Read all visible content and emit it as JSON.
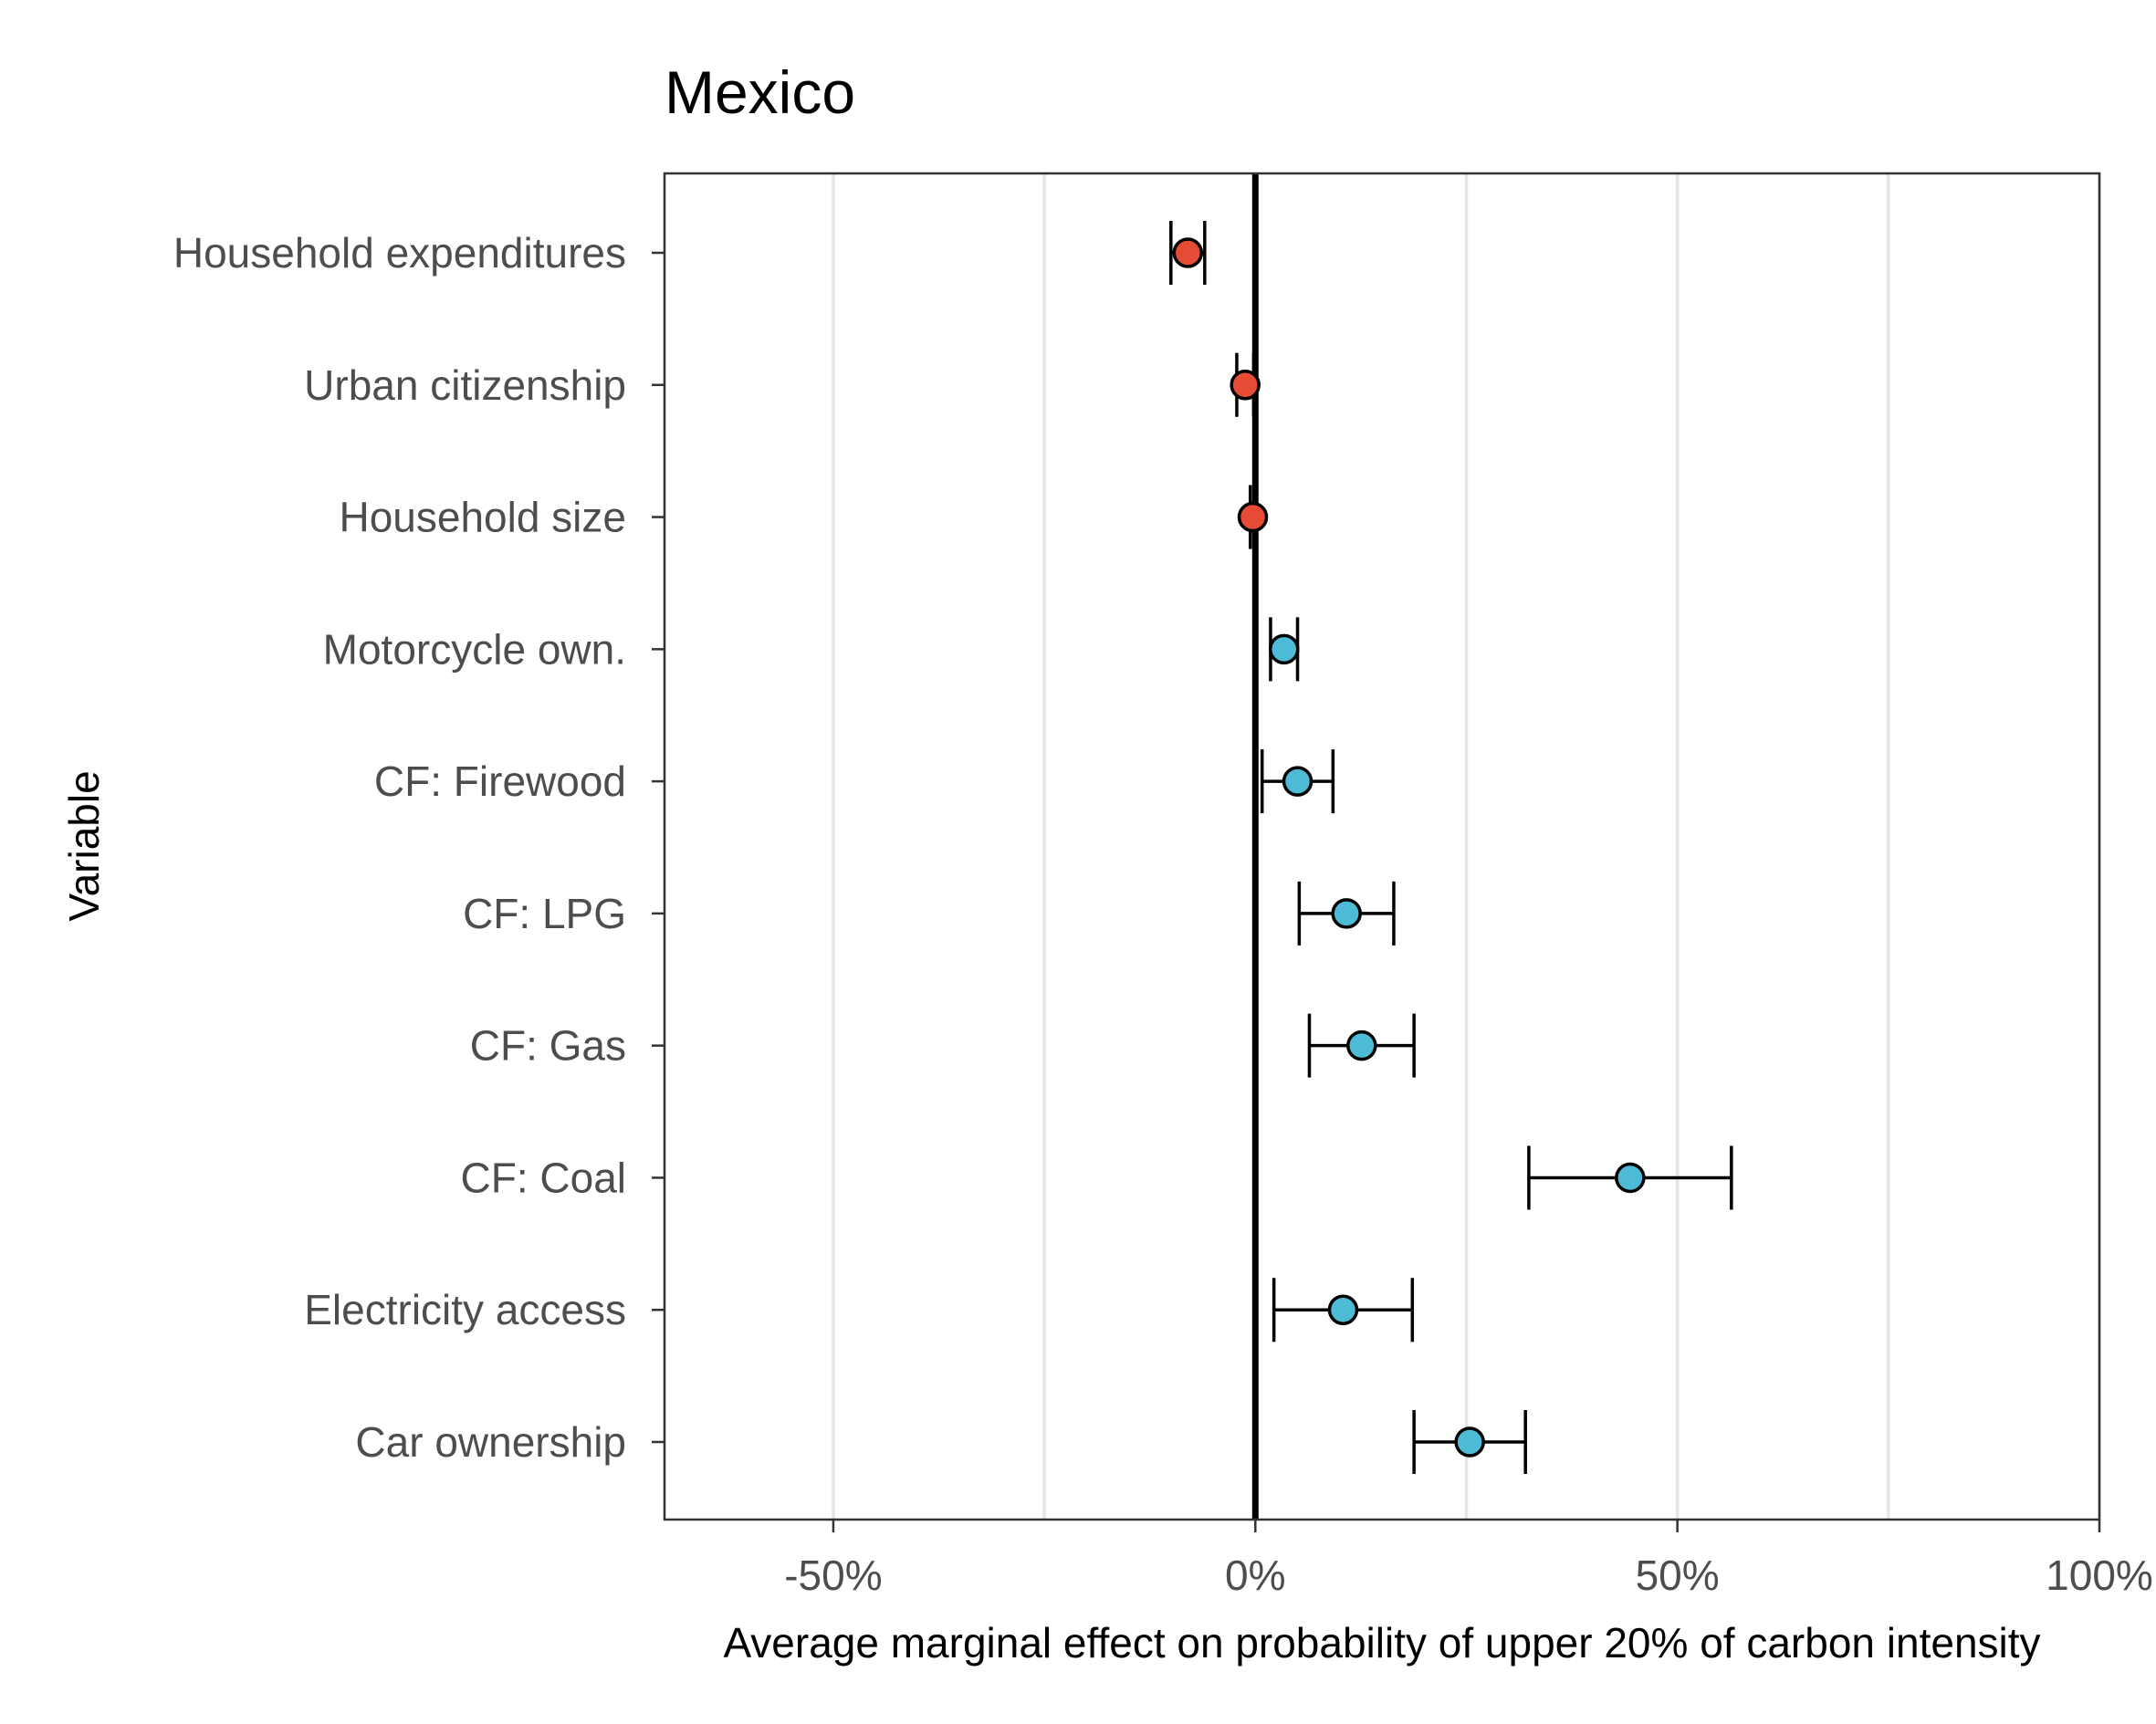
{
  "chart_data": {
    "type": "scatter",
    "title": "Mexico",
    "xlabel": "Average marginal effect on probability of upper 20% of carbon intensity",
    "ylabel": "Variable",
    "xlim": [
      -0.7,
      1.0
    ],
    "x_ticks": [
      -0.5,
      0,
      0.5,
      1.0
    ],
    "x_tick_labels": [
      "-50%",
      "0%",
      "50%",
      "100%"
    ],
    "x_minor_grid": [
      -0.25,
      0.25,
      0.75
    ],
    "grid": true,
    "reference_line": 0,
    "colors": {
      "negative": "#E64B35",
      "positive": "#4DBBD5"
    },
    "categories": [
      "Household expenditures",
      "Urban citizenship",
      "Household size",
      "Motorcycle own.",
      "CF: Firewood",
      "CF: LPG",
      "CF: Gas",
      "CF: Coal",
      "Electricity access",
      "Car ownership"
    ],
    "points": [
      {
        "estimate": -0.08,
        "low": -0.1,
        "high": -0.06
      },
      {
        "estimate": -0.012,
        "low": -0.022,
        "high": -0.002
      },
      {
        "estimate": -0.003,
        "low": -0.006,
        "high": 0.0
      },
      {
        "estimate": 0.034,
        "low": 0.018,
        "high": 0.05
      },
      {
        "estimate": 0.05,
        "low": 0.008,
        "high": 0.092
      },
      {
        "estimate": 0.108,
        "low": 0.052,
        "high": 0.164
      },
      {
        "estimate": 0.126,
        "low": 0.064,
        "high": 0.188
      },
      {
        "estimate": 0.444,
        "low": 0.324,
        "high": 0.564
      },
      {
        "estimate": 0.104,
        "low": 0.022,
        "high": 0.186
      },
      {
        "estimate": 0.254,
        "low": 0.188,
        "high": 0.32
      }
    ]
  }
}
